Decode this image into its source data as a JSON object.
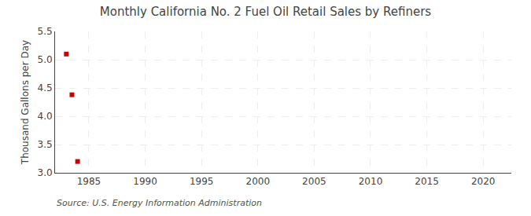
{
  "chart_data": {
    "type": "scatter",
    "title": "Monthly California No. 2 Fuel Oil Retail Sales by Refiners",
    "ylabel": "Thousand Gallons per Day",
    "annotations": [
      "Source: U.S. Energy Information Administration"
    ],
    "x": [
      1983.0,
      1983.5,
      1984.0
    ],
    "values": [
      5.1,
      4.38,
      3.2
    ],
    "color": "#cc0000",
    "marker": "square",
    "xlim": [
      1982.0,
      2022.5
    ],
    "xticks": [
      1985,
      1990,
      1995,
      2000,
      2005,
      2010,
      2015,
      2020
    ],
    "ylim": [
      3.0,
      5.5
    ],
    "yticks": [
      {
        "value": 3.0,
        "label": "3.0"
      },
      3.5,
      {
        "value": 4.0,
        "label": "4.0"
      },
      4.5,
      {
        "value": 5.0,
        "label": "5.0"
      },
      5.5
    ],
    "grid": true
  }
}
